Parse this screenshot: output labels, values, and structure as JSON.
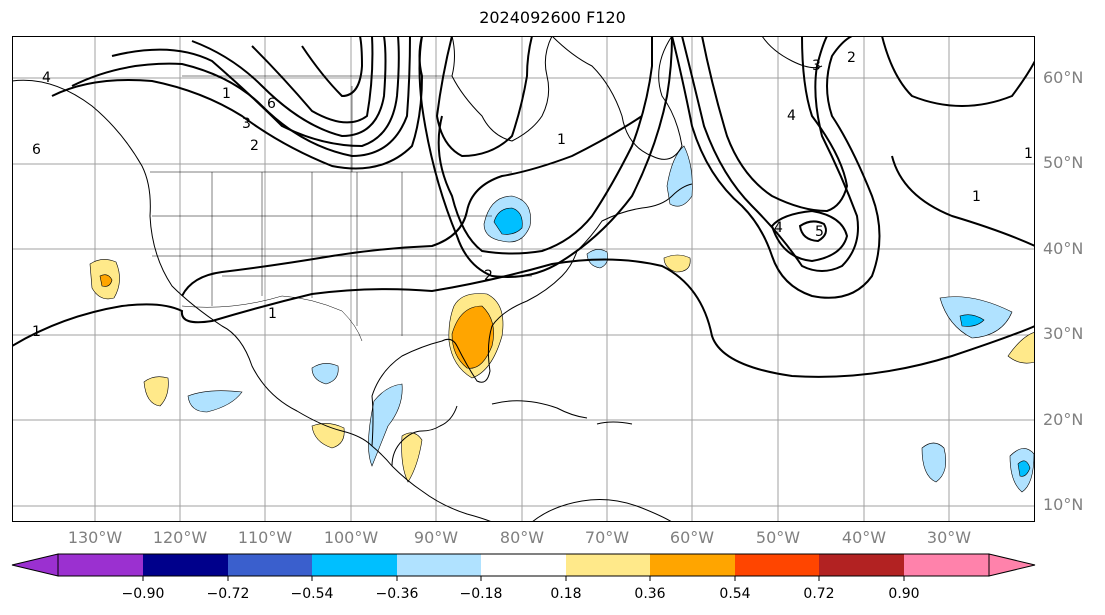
{
  "title": "2024092600 F120",
  "lat_labels": [
    "60°N",
    "50°N",
    "40°N",
    "30°N",
    "20°N",
    "10°N"
  ],
  "lon_labels": [
    "130°W",
    "120°W",
    "110°W",
    "100°W",
    "90°W",
    "80°W",
    "70°W",
    "60°W",
    "50°W",
    "40°W",
    "30°W"
  ],
  "contour_labels": [
    "1",
    "1",
    "1",
    "1",
    "2",
    "2",
    "3",
    "4",
    "4",
    "5",
    "6",
    "6",
    "4",
    "3",
    "2",
    "1",
    "1"
  ],
  "colorbar": {
    "ticks": [
      "−0.90",
      "−0.72",
      "−0.54",
      "−0.36",
      "−0.18",
      "0.18",
      "0.36",
      "0.54",
      "0.72",
      "0.90"
    ],
    "colors": {
      "under": "#9b30d0",
      "bins": [
        "#9b30d0",
        "#00008b",
        "#3a5fcd",
        "#00bfff",
        "#b0e2ff",
        "#ffffff",
        "#ffe98a",
        "#ffa500",
        "#ff4500",
        "#b22222",
        "#ff82ab"
      ],
      "over": "#ff82ab"
    }
  },
  "fill_colors": {
    "light_blue": "#b0e2ff",
    "blue": "#00bfff",
    "light_yellow": "#ffe98a",
    "orange": "#ffa500"
  }
}
